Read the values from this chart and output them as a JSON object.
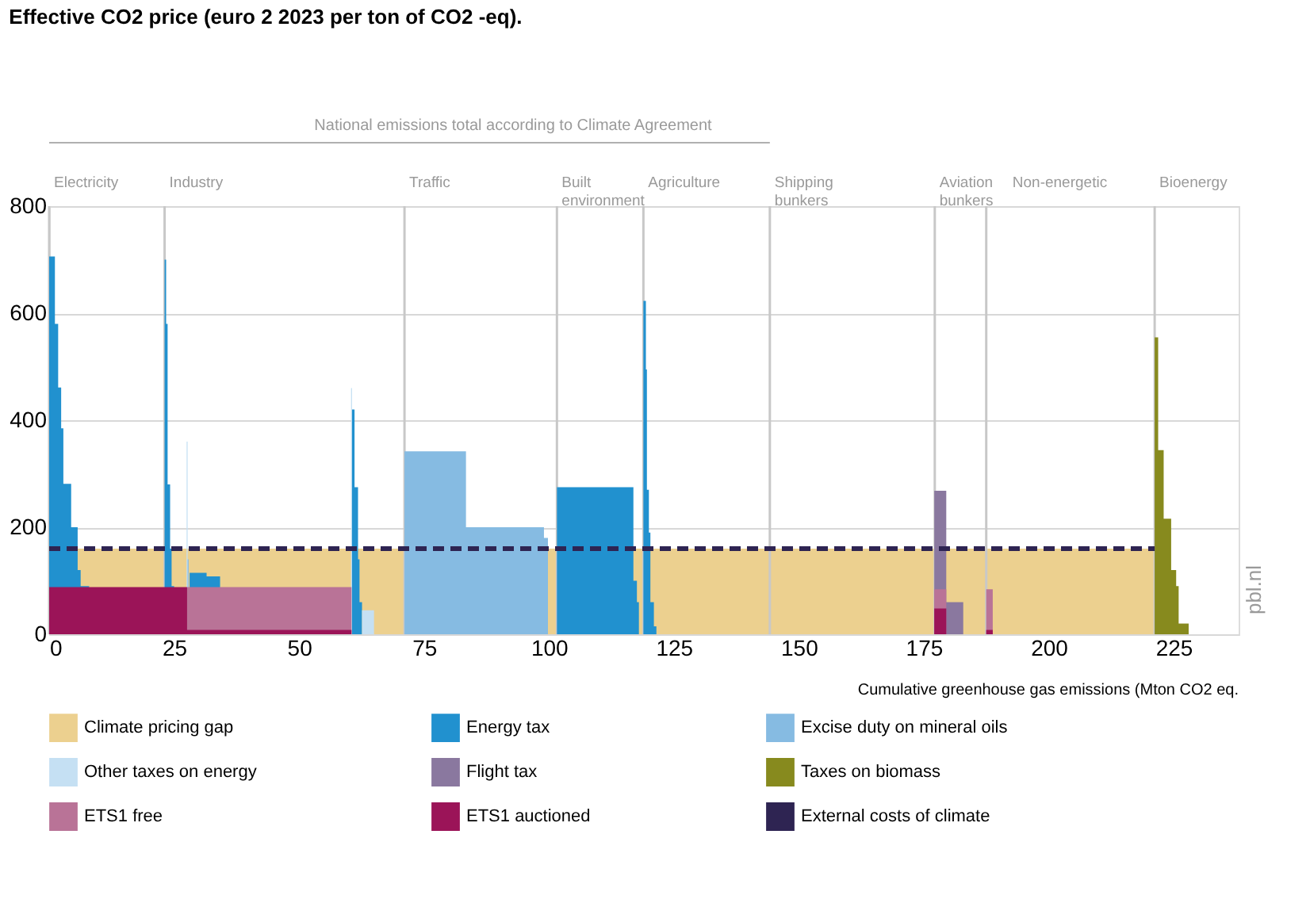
{
  "chart_data": {
    "type": "area",
    "title": "Effective CO2 price (euro 2 2023 per ton of CO2 -eq).",
    "xlabel": "Cumulative greenhouse gas emissions (Mton CO2 eq.",
    "annotations": [
      "National emissions total according to Climate Agreement",
      "pbl.nl"
    ],
    "xlim": [
      0,
      238
    ],
    "xticks": [
      0,
      25,
      50,
      75,
      100,
      125,
      150,
      175,
      200,
      225
    ],
    "ylim": [
      0,
      800
    ],
    "yticks": [
      0,
      200,
      400,
      600,
      800
    ],
    "grid": "y",
    "legend": "bottom",
    "series": [
      {
        "name": "Climate pricing gap",
        "color": "#ecd08f",
        "x": [
          0,
          221.2
        ],
        "values": [
          160,
          0
        ]
      },
      {
        "name": "Energy tax",
        "color": "#2191cf",
        "x": [
          0,
          1.15,
          1.8,
          2.4,
          2.84,
          4.4,
          5.7,
          6.3,
          8.0,
          23.1,
          23.4,
          23.7,
          24.2,
          24.5,
          25.0,
          28.1,
          31.5,
          34.2,
          60.5,
          61.1,
          61.8,
          62.1,
          62.6,
          101.6,
          116.9,
          117.6,
          118.0,
          118.9,
          119.4,
          119.6,
          120.0,
          120.3,
          121.0,
          121.5
        ],
        "values": [
          706,
          580,
          461,
          385,
          281,
          200,
          120,
          90,
          0,
          700,
          580,
          280,
          160,
          90,
          0,
          115,
          108,
          0,
          420,
          275,
          140,
          60,
          0,
          275,
          100,
          60,
          0,
          623,
          495,
          270,
          190,
          60,
          15,
          0
        ]
      },
      {
        "name": "Excise duty on mineral oils",
        "color": "#86bbe2",
        "x": [
          27.6,
          27.9,
          71.1,
          83.4,
          99.0,
          99.8
        ],
        "values": [
          140,
          0,
          342,
          200,
          180,
          0
        ]
      },
      {
        "name": "Other taxes on energy",
        "color": "#c5e0f3",
        "x": [
          27.5,
          27.7,
          60.4,
          60.6,
          62.6,
          65.0
        ],
        "values": [
          360,
          0,
          460,
          0,
          45,
          0
        ]
      },
      {
        "name": "Flight tax",
        "color": "#8a789f",
        "x": [
          177.1,
          179.5,
          182.9
        ],
        "values": [
          268,
          60,
          0
        ]
      },
      {
        "name": "Taxes on biomass",
        "color": "#878a1e",
        "x": [
          221.2,
          221.9,
          223.0,
          224.5,
          225.5,
          226.0,
          228.0
        ],
        "values": [
          555,
          344,
          216,
          120,
          90,
          20,
          0
        ]
      },
      {
        "name": "ETS1 free",
        "color": "#b97397",
        "x": [
          27.6,
          60.5,
          177.1,
          179.5,
          187.5,
          188.8
        ],
        "values": [
          88,
          0,
          84,
          0,
          84,
          0
        ]
      },
      {
        "name": "ETS1 auctioned",
        "color": "#9b1458",
        "x": [
          0,
          27.6,
          60.5,
          177.1,
          179.5,
          187.5,
          188.8
        ],
        "values": [
          88,
          8,
          0,
          48,
          0,
          8,
          0
        ]
      },
      {
        "name": "External costs of climate",
        "type": "line",
        "line_style": "dashed",
        "color": "#2e2452",
        "x": [
          0,
          221.2
        ],
        "values": [
          160,
          160
        ]
      }
    ],
    "ref_lines": [
      {
        "axis": "x",
        "value": 0,
        "label": "Electricity",
        "color": "#c8c8c8"
      },
      {
        "axis": "x",
        "value": 23.1,
        "label": "Industry",
        "color": "#c8c8c8"
      },
      {
        "axis": "x",
        "value": 71.1,
        "label": "Traffic",
        "color": "#c8c8c8"
      },
      {
        "axis": "x",
        "value": 101.6,
        "label": "Built environment",
        "color": "#c8c8c8"
      },
      {
        "axis": "x",
        "value": 118.9,
        "label": "Agriculture",
        "color": "#c8c8c8"
      },
      {
        "axis": "x",
        "value": 144.2,
        "label": "Shipping bunkers",
        "color": "#c8c8c8"
      },
      {
        "axis": "x",
        "value": 177.2,
        "label": "Aviation bunkers",
        "color": "#c8c8c8"
      },
      {
        "axis": "x",
        "value": 187.5,
        "label": "Non-energetic",
        "color": "#c8c8c8"
      },
      {
        "axis": "x",
        "value": 221.2,
        "label": "Bioenergy",
        "color": "#c8c8c8"
      }
    ]
  }
}
